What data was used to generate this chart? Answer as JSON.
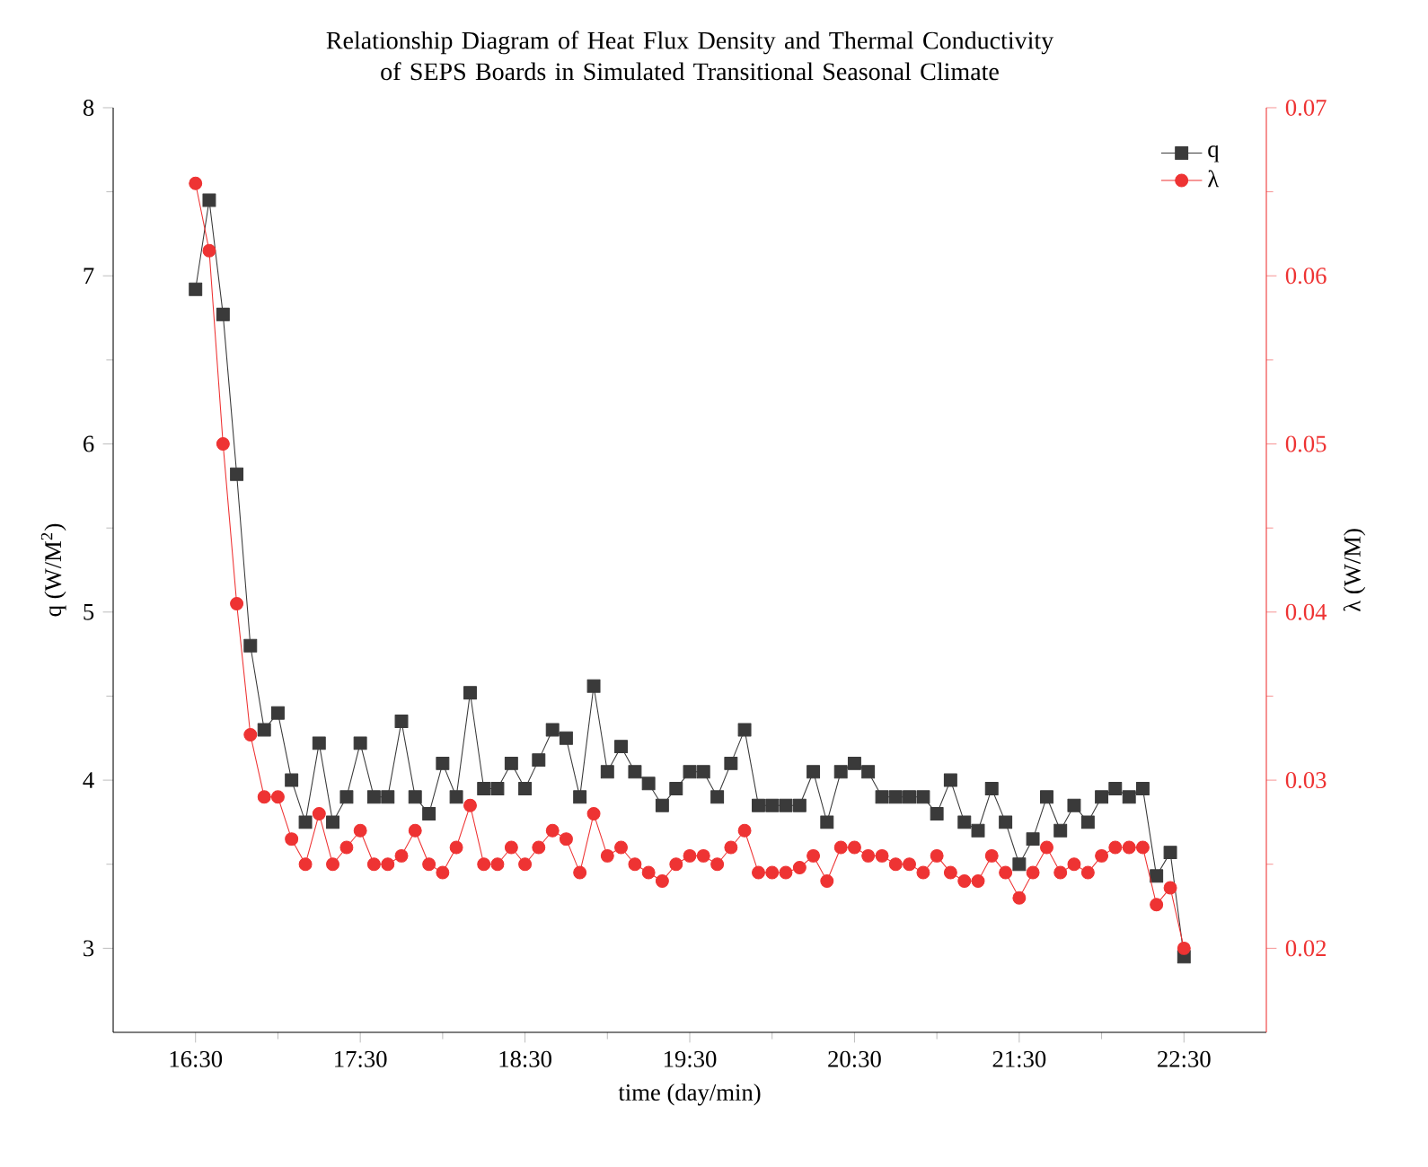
{
  "chart_data": {
    "type": "line",
    "title": "Relationship Diagram of Heat Flux Density and Thermal Conductivity of SEPS Boards in Simulated Transitional Seasonal Climate",
    "xlabel": "time (day/min)",
    "ylabel": "q (W/M$^{2}$)",
    "y2label": "λ (W/M)",
    "x": [
      16.5,
      16.583,
      16.667,
      16.75,
      16.833,
      16.917,
      17,
      17.083,
      17.167,
      17.25,
      17.333,
      17.417,
      17.5,
      17.583,
      17.667,
      17.75,
      17.833,
      17.917,
      18,
      18.083,
      18.167,
      18.25,
      18.333,
      18.417,
      18.5,
      18.583,
      18.667,
      18.75,
      18.833,
      18.917,
      19,
      19.083,
      19.167,
      19.25,
      19.333,
      19.417,
      19.5,
      19.583,
      19.667,
      19.75,
      19.833,
      19.917,
      20,
      20.083,
      20.167,
      20.25,
      20.333,
      20.417,
      20.5,
      20.583,
      20.667,
      20.75,
      20.833,
      20.917,
      21,
      21.083,
      21.167,
      21.25,
      21.333,
      21.417,
      21.5,
      21.583,
      21.667,
      21.75,
      21.833,
      21.917,
      22,
      22.083,
      22.167,
      22.25,
      22.333,
      22.417,
      22.5
    ],
    "series": [
      {
        "name": "q",
        "color": "#3a3a3a",
        "marker": "square",
        "values": [
          6.92,
          7.45,
          6.77,
          5.82,
          4.8,
          4.3,
          4.4,
          4.0,
          3.75,
          4.22,
          3.75,
          3.9,
          4.22,
          3.9,
          3.9,
          4.35,
          3.9,
          3.8,
          4.1,
          3.9,
          4.52,
          3.95,
          3.95,
          4.1,
          3.95,
          4.12,
          4.3,
          4.25,
          3.9,
          4.56,
          4.05,
          4.2,
          4.05,
          3.98,
          3.85,
          3.95,
          4.05,
          4.05,
          3.9,
          4.1,
          4.3,
          3.85,
          3.85,
          3.85,
          3.85,
          4.05,
          3.75,
          4.05,
          4.1,
          4.05,
          3.9,
          3.9,
          3.9,
          3.9,
          3.8,
          4.0,
          3.75,
          3.7,
          3.95,
          3.75,
          3.5,
          3.65,
          3.9,
          3.7,
          3.85,
          3.75,
          3.9,
          3.95,
          3.9,
          3.95,
          3.43,
          3.57,
          2.95
        ]
      },
      {
        "name": "λ",
        "color": "#ee3333",
        "marker": "circle",
        "axis": "y2",
        "values": [
          0.0655,
          0.0615,
          0.05,
          0.0405,
          0.0327,
          0.029,
          0.029,
          0.0265,
          0.025,
          0.028,
          0.025,
          0.026,
          0.027,
          0.025,
          0.025,
          0.0255,
          0.027,
          0.025,
          0.0245,
          0.026,
          0.0285,
          0.025,
          0.025,
          0.026,
          0.025,
          0.026,
          0.027,
          0.0265,
          0.0245,
          0.028,
          0.0255,
          0.026,
          0.025,
          0.0245,
          0.024,
          0.025,
          0.0255,
          0.0255,
          0.025,
          0.026,
          0.027,
          0.0245,
          0.0245,
          0.0245,
          0.0248,
          0.0255,
          0.024,
          0.026,
          0.026,
          0.0255,
          0.0255,
          0.025,
          0.025,
          0.0245,
          0.0255,
          0.0245,
          0.024,
          0.024,
          0.0255,
          0.0245,
          0.023,
          0.0245,
          0.026,
          0.0245,
          0.025,
          0.0245,
          0.0255,
          0.026,
          0.026,
          0.026,
          0.0226,
          0.0236,
          0.02
        ]
      }
    ],
    "xlim": [
      16,
      23
    ],
    "xticks": [
      {
        "value": 16.5,
        "label": "16:30"
      },
      {
        "value": 17.5,
        "label": "17:30"
      },
      {
        "value": 18.5,
        "label": "18:30"
      },
      {
        "value": 19.5,
        "label": "19:30"
      },
      {
        "value": 20.5,
        "label": "20:30"
      },
      {
        "value": 21.5,
        "label": "21:30"
      },
      {
        "value": 22.5,
        "label": "22:30"
      }
    ],
    "ylim": [
      2.5,
      8
    ],
    "yticks": [
      3,
      4,
      5,
      6,
      7,
      8
    ],
    "y2lim": [
      0.015,
      0.07
    ],
    "y2ticks": [
      0.02,
      0.03,
      0.04,
      0.05,
      0.06,
      0.07
    ],
    "grid": false,
    "legend": "top right"
  }
}
